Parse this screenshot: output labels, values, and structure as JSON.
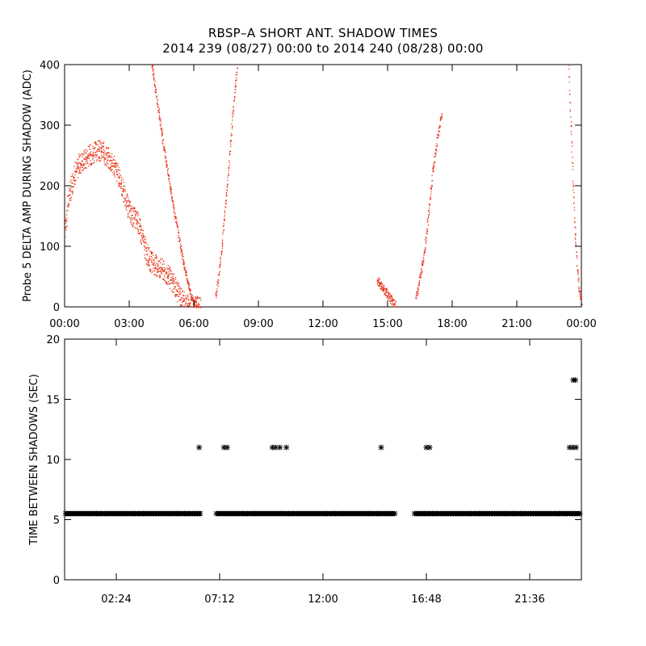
{
  "title_line1": "RBSP–A SHORT ANT. SHADOW TIMES",
  "title_line2": "2014 239 (08/27) 00:00 to 2014 240 (08/28) 00:00",
  "chart_data": [
    {
      "type": "scatter",
      "marker_color": "#e8371c",
      "ylabel": "Probe 5 DELTA AMP DURING SHADOW (ADC)",
      "xlabel": "",
      "xlim_hours": [
        0,
        24
      ],
      "ylim": [
        0,
        400
      ],
      "xticks": [
        "00:00",
        "03:00",
        "06:00",
        "09:00",
        "12:00",
        "15:00",
        "18:00",
        "21:00",
        "00:00"
      ],
      "yticks": [
        "0",
        "100",
        "200",
        "300",
        "400"
      ],
      "series": [
        {
          "x": [
            0.0,
            0.1,
            0.2,
            0.3,
            0.4,
            0.5,
            0.6,
            0.7,
            0.8,
            0.9,
            1.0,
            1.1,
            1.2,
            1.3,
            1.4,
            1.5,
            1.6,
            1.7,
            1.8,
            1.9,
            2.0,
            2.1,
            2.2,
            2.3,
            2.4,
            2.5,
            2.6,
            2.7,
            2.8,
            2.9,
            3.0,
            3.1,
            3.2,
            3.3,
            3.4,
            3.5,
            3.6,
            3.7,
            3.8,
            3.9,
            4.0,
            4.1,
            4.2,
            4.3,
            4.4,
            4.5,
            4.6,
            4.7,
            4.8,
            4.9,
            5.0,
            5.1,
            5.2,
            5.3,
            5.4,
            5.5,
            5.6,
            5.7,
            5.8,
            5.9,
            6.0,
            6.1,
            6.2,
            6.3
          ],
          "y": [
            130,
            160,
            185,
            200,
            215,
            225,
            232,
            238,
            242,
            245,
            248,
            250,
            252,
            254,
            256,
            258,
            258,
            257,
            255,
            252,
            248,
            243,
            238,
            232,
            224,
            215,
            205,
            193,
            180,
            168,
            158,
            152,
            148,
            145,
            140,
            128,
            115,
            100,
            88,
            80,
            75,
            72,
            70,
            68,
            66,
            64,
            60,
            56,
            52,
            46,
            40,
            34,
            28,
            22,
            16,
            10,
            6,
            3,
            2,
            1,
            1,
            0,
            0,
            0
          ]
        },
        {
          "x": [
            4.05,
            4.1,
            4.2,
            4.3,
            4.4,
            4.5,
            4.6,
            4.7,
            4.8,
            4.9,
            5.0,
            5.1,
            5.2,
            5.3,
            5.4,
            5.5,
            5.6,
            5.7,
            5.8,
            5.9,
            6.0,
            6.1,
            6.2
          ],
          "y": [
            400,
            385,
            360,
            335,
            310,
            285,
            262,
            240,
            218,
            196,
            175,
            155,
            135,
            115,
            95,
            75,
            58,
            42,
            28,
            16,
            8,
            3,
            1
          ]
        },
        {
          "x": [
            7.0,
            7.1,
            7.2,
            7.3,
            7.4,
            7.5,
            7.6,
            7.7,
            7.8,
            7.9,
            8.0
          ],
          "y": [
            20,
            40,
            70,
            105,
            145,
            185,
            230,
            275,
            320,
            360,
            395
          ]
        },
        {
          "x": [
            14.5,
            14.6,
            14.7,
            14.8,
            14.9,
            15.0,
            15.1,
            15.2,
            15.3,
            15.4
          ],
          "y": [
            45,
            40,
            35,
            30,
            25,
            20,
            15,
            10,
            5,
            1
          ]
        },
        {
          "x": [
            16.3,
            16.4,
            16.5,
            16.6,
            16.7,
            16.8,
            16.9,
            17.0,
            17.1,
            17.2,
            17.3,
            17.4,
            17.5
          ],
          "y": [
            15,
            30,
            50,
            70,
            95,
            125,
            160,
            195,
            230,
            255,
            280,
            300,
            320
          ]
        },
        {
          "x": [
            23.4,
            23.5,
            23.6,
            23.7,
            23.8,
            23.9,
            24.0
          ],
          "y": [
            400,
            300,
            200,
            120,
            60,
            25,
            5
          ]
        }
      ]
    },
    {
      "type": "scatter",
      "marker": "asterisk",
      "marker_color": "#000000",
      "ylabel": "TIME BETWEEN SHADOWS (SEC)",
      "xlabel": "",
      "xlim_hours": [
        0,
        24
      ],
      "ylim": [
        0,
        20
      ],
      "xticks": [
        "02:24",
        "07:12",
        "12:00",
        "16:48",
        "21:36"
      ],
      "yticks": [
        "0",
        "5",
        "10",
        "15",
        "20"
      ],
      "baseline_y": 5.5,
      "baseline_segments_hours": [
        [
          0.05,
          6.35
        ],
        [
          7.05,
          15.35
        ],
        [
          16.25,
          23.95
        ]
      ],
      "outlier_points": {
        "x": [
          6.25,
          7.4,
          7.55,
          9.65,
          9.8,
          10.0,
          10.3,
          14.7,
          16.8,
          16.95,
          23.45,
          23.6,
          23.75,
          23.62,
          23.72
        ],
        "y": [
          11.0,
          11.0,
          11.0,
          11.0,
          11.0,
          11.0,
          11.0,
          11.0,
          11.0,
          11.0,
          11.0,
          11.0,
          11.0,
          16.6,
          16.6
        ]
      }
    }
  ]
}
